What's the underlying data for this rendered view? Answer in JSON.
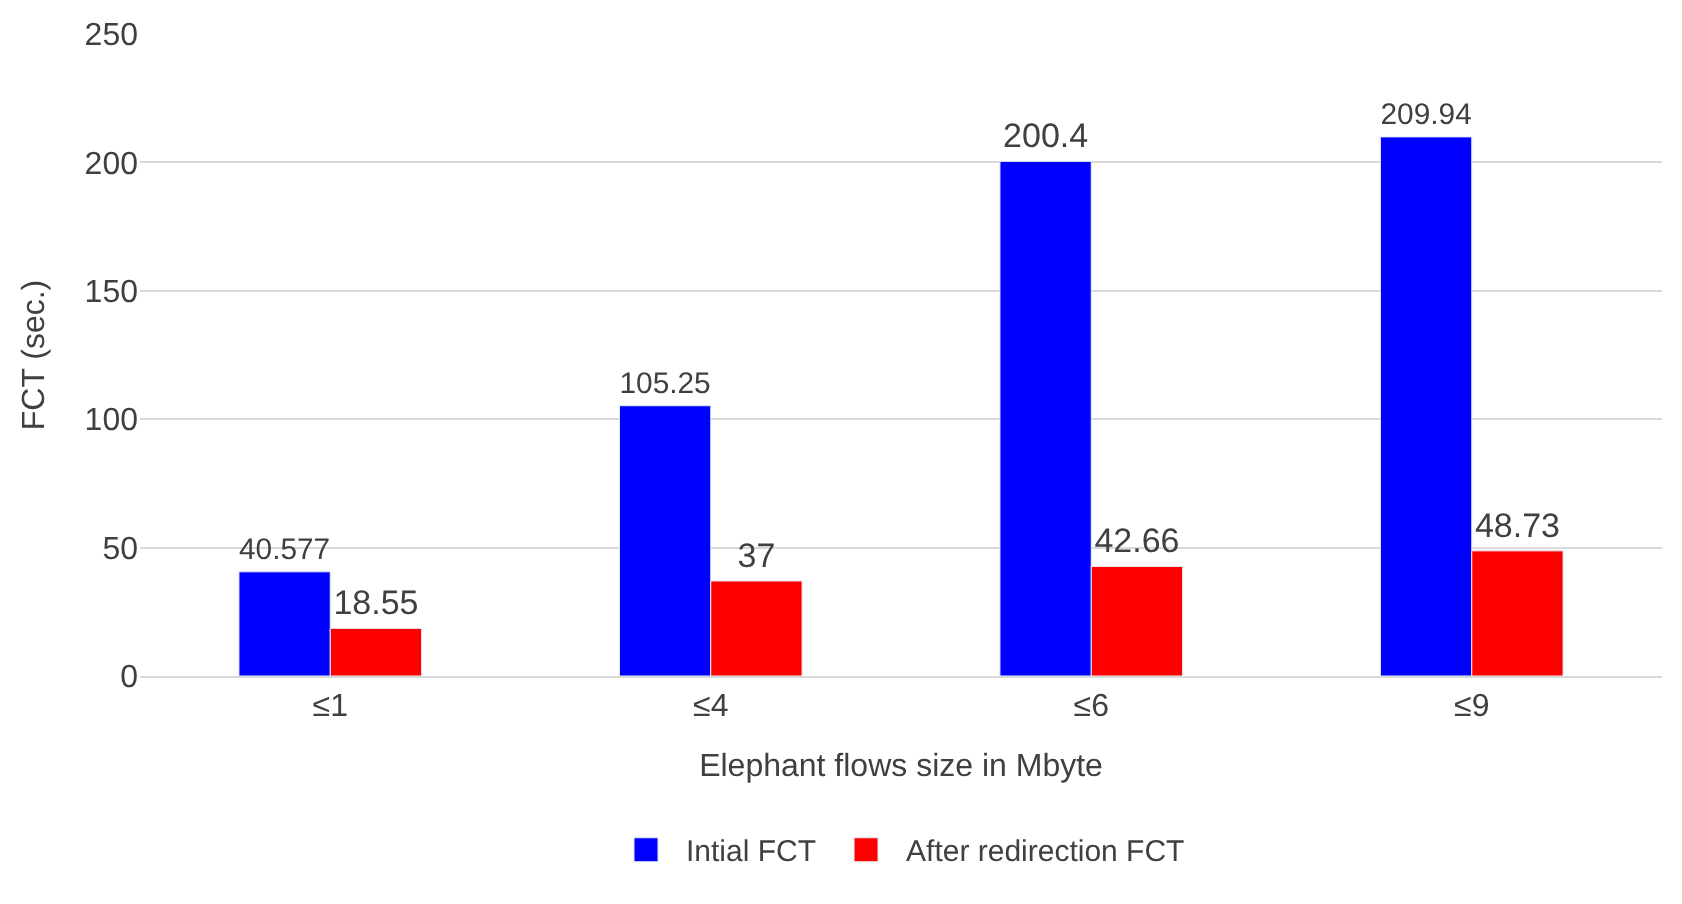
{
  "chart_data": {
    "type": "bar",
    "xlabel": "Elephant flows size in Mbyte",
    "ylabel": "FCT (sec.)",
    "categories": [
      "≤1",
      "≤4",
      "≤6",
      "≤9"
    ],
    "series": [
      {
        "name": "Intial FCT",
        "color": "#0000ff",
        "values": [
          40.577,
          105.25,
          200.4,
          209.94
        ]
      },
      {
        "name": "After redirection FCT",
        "color": "#ff0000",
        "values": [
          18.55,
          37,
          42.66,
          48.73
        ]
      }
    ],
    "ylim": [
      0,
      250
    ],
    "yticks": [
      0,
      50,
      100,
      150,
      200,
      250
    ],
    "grid": "y",
    "legend": "bottom",
    "data_labels": true
  }
}
